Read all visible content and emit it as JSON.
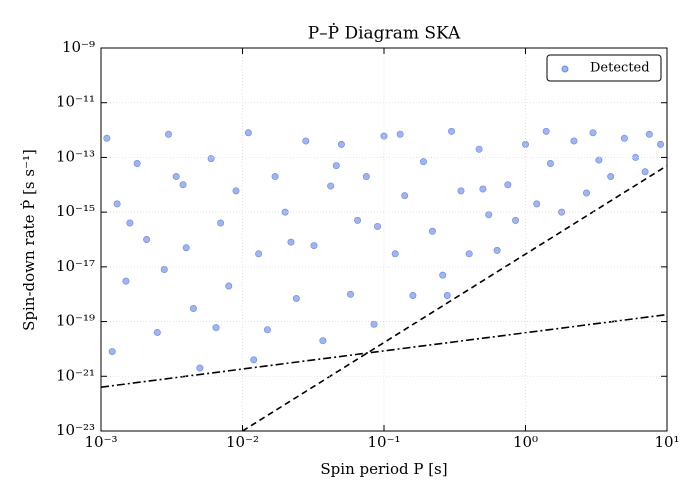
{
  "chart_data": {
    "type": "scatter",
    "title": "P–Ṗ Diagram SKA",
    "xlabel": "Spin period P [s]",
    "ylabel": "Spin-down rate Ṗ [s s⁻¹]",
    "xscale": "log",
    "yscale": "log",
    "grid": true,
    "legend": "upper right",
    "xlim": [
      0.001,
      10
    ],
    "ylim": [
      1e-23,
      1e-09
    ],
    "xticks": [
      {
        "value": 0.001,
        "label": "10⁻³"
      },
      {
        "value": 0.01,
        "label": "10⁻²"
      },
      {
        "value": 0.1,
        "label": "10⁻¹"
      },
      {
        "value": 1,
        "label": "10⁰"
      },
      {
        "value": 10,
        "label": "10¹"
      }
    ],
    "yticks": [
      {
        "value": 1e-23,
        "label": "10⁻²³"
      },
      {
        "value": 1e-21,
        "label": "10⁻²¹"
      },
      {
        "value": 1e-19,
        "label": "10⁻¹⁹"
      },
      {
        "value": 1e-17,
        "label": "10⁻¹⁷"
      },
      {
        "value": 1e-15,
        "label": "10⁻¹⁵"
      },
      {
        "value": 1e-13,
        "label": "10⁻¹³"
      },
      {
        "value": 1e-11,
        "label": "10⁻¹¹"
      },
      {
        "value": 1e-09,
        "label": "10⁻⁹"
      }
    ],
    "series": [
      {
        "name": "Detected",
        "color": "#4169e1",
        "x": [
          0.0011,
          0.0013,
          0.0015,
          0.0012,
          0.0018,
          0.0021,
          0.0025,
          0.003,
          0.0034,
          0.004,
          0.0045,
          0.005,
          0.006,
          0.007,
          0.008,
          0.009,
          0.011,
          0.013,
          0.015,
          0.017,
          0.02,
          0.024,
          0.028,
          0.032,
          0.037,
          0.042,
          0.05,
          0.058,
          0.065,
          0.075,
          0.085,
          0.1,
          0.12,
          0.14,
          0.16,
          0.19,
          0.22,
          0.26,
          0.3,
          0.35,
          0.4,
          0.47,
          0.55,
          0.63,
          0.75,
          0.85,
          1,
          1.2,
          1.5,
          1.8,
          2.2,
          2.7,
          3.3,
          4,
          5,
          6,
          7.5,
          9,
          0.0016,
          0.0028,
          0.0038,
          0.0065,
          0.012,
          0.022,
          0.046,
          0.09,
          0.13,
          0.28,
          0.5,
          1.4,
          3,
          7
        ],
        "y": [
          5e-13,
          2e-15,
          3e-18,
          8e-21,
          6e-14,
          1e-16,
          4e-20,
          7e-13,
          2e-14,
          5e-17,
          3e-19,
          2e-21,
          9e-14,
          4e-16,
          2e-18,
          6e-15,
          8e-13,
          3e-17,
          5e-20,
          2e-14,
          1e-15,
          7e-19,
          4e-13,
          6e-17,
          2e-20,
          9e-15,
          3e-13,
          1e-18,
          5e-16,
          2e-14,
          8e-20,
          6e-13,
          3e-17,
          4e-15,
          9e-19,
          7e-14,
          2e-16,
          5e-18,
          9e-13,
          6e-15,
          3e-17,
          2e-13,
          8e-16,
          4e-17,
          1e-14,
          5e-16,
          3e-13,
          2e-15,
          6e-14,
          1e-15,
          4e-13,
          5e-15,
          8e-14,
          2e-14,
          5e-13,
          1e-13,
          7e-13,
          3e-13,
          4e-16,
          8e-18,
          1e-14,
          6e-20,
          4e-21,
          8e-17,
          5e-14,
          3e-16,
          7e-13,
          9e-19,
          7e-15,
          9e-13,
          8e-13,
          3e-14
        ]
      }
    ],
    "lines": [
      {
        "style": "dashed",
        "x": [
          0.01,
          10
        ],
        "y": [
          1e-23,
          5e-14
        ]
      },
      {
        "style": "dashdot",
        "x": [
          0.001,
          10
        ],
        "y": [
          4e-22,
          1.8e-19
        ]
      }
    ]
  }
}
